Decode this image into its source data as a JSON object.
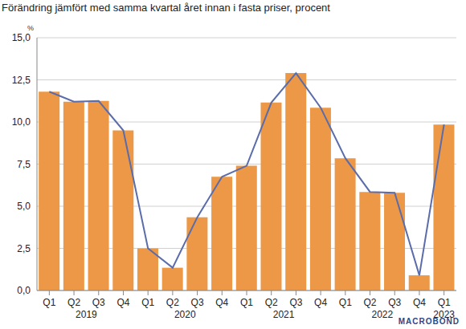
{
  "chart_data": {
    "type": "bar",
    "title": "Förändring jämfört med samma kvartal året innan i fasta priser, procent",
    "ylabel": "%",
    "annotations": [
      "MACROBOND"
    ],
    "categories": [
      [
        "Q1",
        "2019"
      ],
      [
        "Q2",
        "2019"
      ],
      [
        "Q3",
        "2019"
      ],
      [
        "Q4",
        "2019"
      ],
      [
        "Q1",
        "2020"
      ],
      [
        "Q2",
        "2020"
      ],
      [
        "Q3",
        "2020"
      ],
      [
        "Q4",
        "2020"
      ],
      [
        "Q1",
        "2021"
      ],
      [
        "Q2",
        "2021"
      ],
      [
        "Q3",
        "2021"
      ],
      [
        "Q4",
        "2021"
      ],
      [
        "Q1",
        "2022"
      ],
      [
        "Q2",
        "2022"
      ],
      [
        "Q3",
        "2022"
      ],
      [
        "Q4",
        "2022"
      ],
      [
        "Q1",
        "2023"
      ]
    ],
    "series": [
      {
        "type": "bar",
        "color": "#ec9846",
        "values": [
          11.8,
          11.2,
          11.25,
          9.5,
          2.5,
          1.35,
          4.35,
          6.75,
          7.4,
          11.15,
          12.9,
          10.85,
          7.85,
          5.85,
          5.8,
          0.9,
          9.85
        ]
      },
      {
        "type": "line",
        "color": "#5a6caa",
        "values": [
          11.8,
          11.2,
          11.25,
          9.5,
          2.5,
          1.35,
          4.35,
          6.75,
          7.4,
          11.15,
          12.9,
          10.85,
          7.85,
          5.85,
          5.8,
          0.9,
          9.85
        ]
      }
    ],
    "ylim": [
      0,
      15
    ],
    "yticks": [
      {
        "value": 0,
        "label": "0,0"
      },
      {
        "value": 2.5,
        "label": "2,5"
      },
      {
        "value": 5,
        "label": "5,0"
      },
      {
        "value": 7.5,
        "label": "7,5"
      },
      {
        "value": 10,
        "label": "10,0"
      },
      {
        "value": 12.5,
        "label": "12,5"
      },
      {
        "value": 15,
        "label": "15,0"
      }
    ],
    "grid": true
  }
}
